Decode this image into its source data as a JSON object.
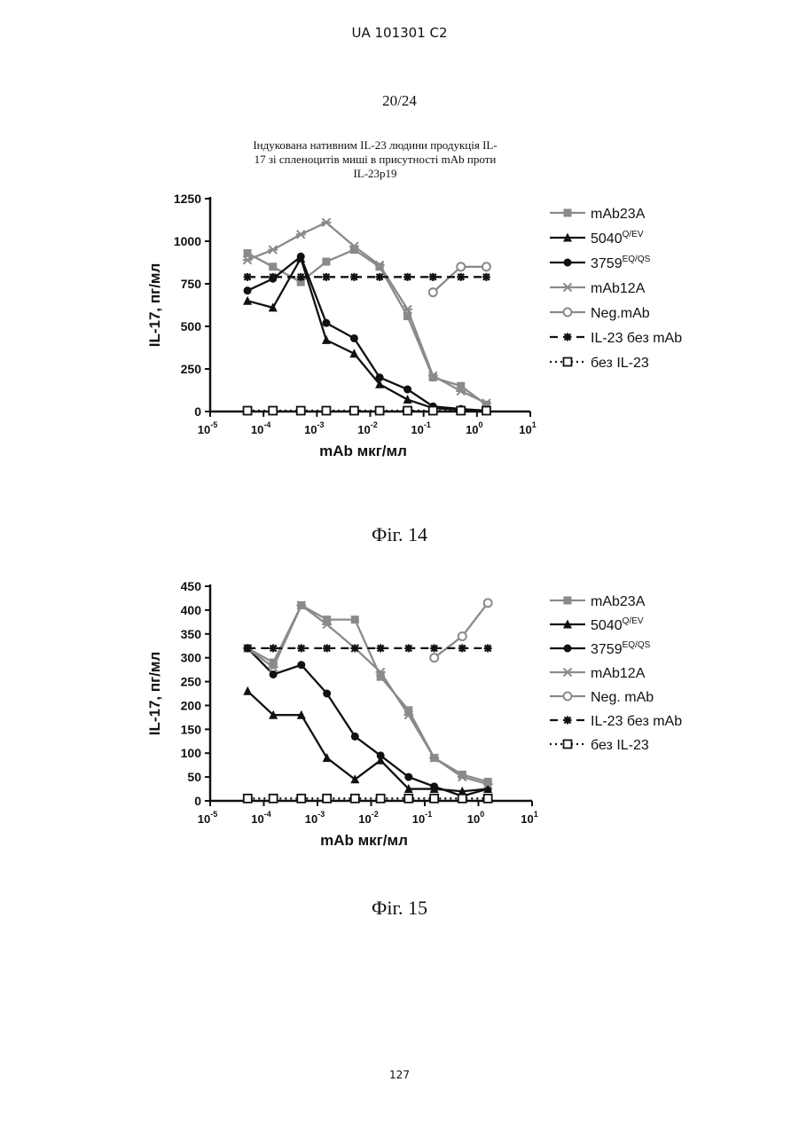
{
  "header": {
    "patent": "UA  101301  C2",
    "sheet": "20/24",
    "page_number": "127"
  },
  "figures": [
    {
      "caption": "Фіг. 14"
    },
    {
      "caption": "Фіг. 15"
    }
  ],
  "chart_data": [
    {
      "type": "line",
      "title": "Індукована нативним IL-23 людини продукція IL-17 зі спленоцитів миші в присутності mAb проти IL-23p19",
      "title_lines": [
        "Індукована нативним IL-23 людини продукція IL-",
        "17 зі спленоцитів миші в присутності mAb проти",
        "IL-23p19"
      ],
      "xlabel": "mAb мкг/мл",
      "ylabel": "IL-17, пг/мл",
      "xscale": "log",
      "xlim": [
        1e-05,
        10
      ],
      "ylim": [
        0,
        1250
      ],
      "yticks": [
        "0",
        "250",
        "500",
        "750",
        "1000",
        "1250"
      ],
      "xtick_exponents": [
        "-5",
        "-4",
        "-3",
        "-2",
        "-1",
        "0",
        "1"
      ],
      "grid": false,
      "legend_position": "right",
      "series": [
        {
          "name": "mAb23A",
          "color": "#8a8a8a",
          "marker": "square",
          "line": "solid",
          "x": [
            5e-05,
            0.00015,
            0.0005,
            0.0015,
            0.005,
            0.015,
            0.05,
            0.15,
            0.5,
            1.5
          ],
          "y": [
            930,
            850,
            760,
            880,
            950,
            850,
            560,
            200,
            150,
            40
          ]
        },
        {
          "name": "5040",
          "sup": "Q/EV",
          "color": "#111111",
          "marker": "triangle",
          "line": "solid",
          "x": [
            5e-05,
            0.00015,
            0.0005,
            0.0015,
            0.005,
            0.015,
            0.05,
            0.15,
            0.5,
            1.5
          ],
          "y": [
            650,
            610,
            900,
            420,
            340,
            160,
            70,
            20,
            10,
            5
          ]
        },
        {
          "name": "3759",
          "sup": "EQ/QS",
          "color": "#111111",
          "marker": "circle",
          "line": "solid",
          "x": [
            5e-05,
            0.00015,
            0.0005,
            0.0015,
            0.005,
            0.015,
            0.05,
            0.15,
            0.5,
            1.5
          ],
          "y": [
            710,
            780,
            910,
            520,
            430,
            200,
            130,
            30,
            15,
            5
          ]
        },
        {
          "name": "mAb12A",
          "color": "#8a8a8a",
          "marker": "x",
          "line": "solid",
          "x": [
            5e-05,
            0.00015,
            0.0005,
            0.0015,
            0.005,
            0.015,
            0.05,
            0.15,
            0.5,
            1.5
          ],
          "y": [
            890,
            950,
            1040,
            1110,
            970,
            860,
            600,
            210,
            120,
            50
          ]
        },
        {
          "name": "Neg.mAb",
          "color": "#8a8a8a",
          "marker": "diamond",
          "line": "solid",
          "x": [
            0.15,
            0.5,
            1.5
          ],
          "y": [
            700,
            850,
            850
          ]
        },
        {
          "name": "IL-23 без mAb",
          "color": "#111111",
          "marker": "asterisk",
          "line": "dashed",
          "x": [
            5e-05,
            0.00015,
            0.0005,
            0.0015,
            0.005,
            0.015,
            0.05,
            0.15,
            0.5,
            1.5
          ],
          "y": [
            790,
            790,
            790,
            790,
            790,
            790,
            790,
            790,
            790,
            790
          ]
        },
        {
          "name": "без IL-23",
          "color": "#111111",
          "marker": "open-square",
          "line": "dotted",
          "x": [
            5e-05,
            0.00015,
            0.0005,
            0.0015,
            0.005,
            0.015,
            0.05,
            0.15,
            0.5,
            1.5
          ],
          "y": [
            5,
            5,
            5,
            5,
            5,
            5,
            5,
            5,
            5,
            5
          ]
        }
      ]
    },
    {
      "type": "line",
      "xlabel": "mAb мкг/мл",
      "ylabel": "IL-17, пг/мл",
      "xscale": "log",
      "xlim": [
        1e-05,
        10
      ],
      "ylim": [
        0,
        450
      ],
      "yticks": [
        "0",
        "50",
        "100",
        "150",
        "200",
        "250",
        "300",
        "350",
        "400",
        "450"
      ],
      "xtick_exponents": [
        "-5",
        "-4",
        "-3",
        "-2",
        "-1",
        "0",
        "1"
      ],
      "grid": false,
      "legend_position": "right",
      "series": [
        {
          "name": "mAb23A",
          "color": "#8a8a8a",
          "marker": "square",
          "line": "solid",
          "x": [
            5e-05,
            0.00015,
            0.0005,
            0.0015,
            0.005,
            0.015,
            0.05,
            0.15,
            0.5,
            1.5
          ],
          "y": [
            320,
            290,
            410,
            380,
            380,
            260,
            190,
            90,
            55,
            40
          ]
        },
        {
          "name": "5040",
          "sup": "Q/EV",
          "color": "#111111",
          "marker": "triangle",
          "line": "solid",
          "x": [
            5e-05,
            0.00015,
            0.0005,
            0.0015,
            0.005,
            0.015,
            0.05,
            0.15,
            0.5,
            1.5
          ],
          "y": [
            230,
            180,
            180,
            90,
            45,
            85,
            25,
            25,
            20,
            25
          ]
        },
        {
          "name": "3759",
          "sup": "EQ/QS",
          "color": "#111111",
          "marker": "circle",
          "line": "solid",
          "x": [
            5e-05,
            0.00015,
            0.0005,
            0.0015,
            0.005,
            0.015,
            0.05,
            0.15,
            0.5,
            1.5
          ],
          "y": [
            320,
            265,
            285,
            225,
            135,
            95,
            50,
            30,
            10,
            25
          ]
        },
        {
          "name": "mAb12A",
          "color": "#8a8a8a",
          "marker": "x",
          "line": "solid",
          "x": [
            5e-05,
            0.00015,
            0.0005,
            0.0015,
            0.005,
            0.015,
            0.05,
            0.15,
            0.5,
            1.5
          ],
          "y": [
            320,
            280,
            410,
            370,
            320,
            270,
            180,
            90,
            50,
            35
          ]
        },
        {
          "name": "Neg. mAb",
          "color": "#8a8a8a",
          "marker": "diamond",
          "line": "solid",
          "x": [
            0.15,
            0.5,
            1.5
          ],
          "y": [
            300,
            345,
            415
          ]
        },
        {
          "name": "IL-23 без mAb",
          "color": "#111111",
          "marker": "asterisk",
          "line": "dashed",
          "x": [
            5e-05,
            0.00015,
            0.0005,
            0.0015,
            0.005,
            0.015,
            0.05,
            0.15,
            0.5,
            1.5
          ],
          "y": [
            320,
            320,
            320,
            320,
            320,
            320,
            320,
            320,
            320,
            320
          ]
        },
        {
          "name": "без IL-23",
          "color": "#111111",
          "marker": "open-square",
          "line": "dotted",
          "x": [
            5e-05,
            0.00015,
            0.0005,
            0.0015,
            0.005,
            0.015,
            0.05,
            0.15,
            0.5,
            1.5
          ],
          "y": [
            5,
            5,
            5,
            5,
            5,
            5,
            5,
            5,
            5,
            5
          ]
        }
      ]
    }
  ]
}
